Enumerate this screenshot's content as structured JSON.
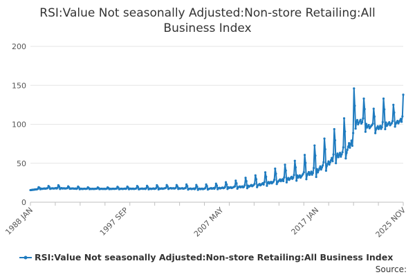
{
  "chart_data": {
    "type": "line",
    "title": "RSI:Value Not seasonally Adjusted:Non-store Retailing:All Business Index",
    "xlabel": "",
    "ylabel": "",
    "ylim": [
      0,
      200
    ],
    "yticks": [
      0,
      50,
      100,
      150,
      200
    ],
    "x_tick_labels": [
      "1988 JAN",
      "1997 SEP",
      "2007 MAY",
      "2017 JAN",
      "2025 NOV"
    ],
    "x_start": "1988-01",
    "x_end": "2025-11",
    "grid": "horizontal",
    "legend": "bottom",
    "color": "#1f7bbf",
    "series": [
      {
        "name": "RSI:Value Not seasonally Adjusted:Non-store Retailing:All Business Index",
        "x": [
          "1988-01",
          "1989-01",
          "1990-01",
          "1991-01",
          "1992-01",
          "1993-01",
          "1994-01",
          "1995-01",
          "1996-01",
          "1997-01",
          "1998-01",
          "1999-01",
          "2000-01",
          "2001-01",
          "2002-01",
          "2003-01",
          "2004-01",
          "2005-01",
          "2006-01",
          "2007-01",
          "2008-01",
          "2009-01",
          "2010-01",
          "2011-01",
          "2012-01",
          "2013-01",
          "2014-01",
          "2015-01",
          "2016-01",
          "2017-01",
          "2018-01",
          "2019-01",
          "2020-01",
          "2020-11",
          "2021-01",
          "2021-11",
          "2022-01",
          "2022-11",
          "2023-01",
          "2023-11",
          "2024-01",
          "2024-11",
          "2025-01",
          "2025-11"
        ],
        "base": [
          15.5,
          17,
          17.5,
          17.5,
          17.5,
          17,
          17,
          17,
          17,
          17,
          17,
          17,
          17,
          17,
          17.5,
          17.5,
          17,
          16.5,
          17,
          17.5,
          18,
          18.5,
          19.5,
          21,
          23,
          25.5,
          28,
          30.5,
          33,
          37,
          45,
          55,
          62,
          75,
          100,
          100,
          95,
          95,
          92,
          95,
          98,
          98,
          100,
          103
        ],
        "peak": [
          15.5,
          20,
          21,
          22,
          20,
          20,
          19,
          19,
          19,
          20,
          20,
          21,
          21,
          22,
          22,
          22,
          23,
          22,
          23,
          24,
          26,
          28,
          32,
          35,
          39,
          44,
          49,
          54,
          62,
          75,
          83,
          96,
          110,
          146,
          146,
          133,
          133,
          120,
          120,
          133,
          133,
          125,
          125,
          138
        ]
      }
    ]
  },
  "source": {
    "label": "Source:"
  }
}
